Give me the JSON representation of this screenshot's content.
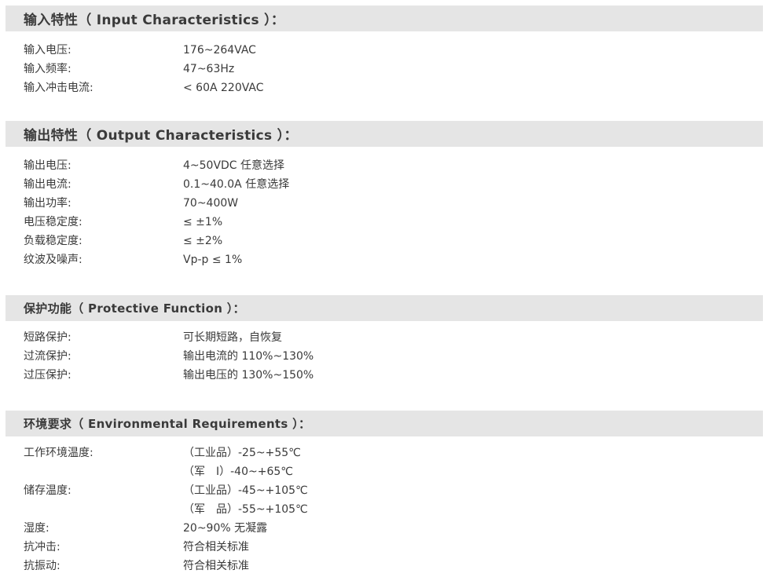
{
  "page": {
    "background": "#ffffff",
    "text_color": "#3a3a3a",
    "header_bar_color": "#e5e5e5"
  },
  "sections": [
    {
      "title": "输入特性（ Input Characteristics ）：",
      "rows": [
        {
          "label": "输入电压:",
          "value": "176~264VAC"
        },
        {
          "label": "输入频率:",
          "value": "47~63Hz"
        },
        {
          "label": "输入冲击电流:",
          "value": "< 60A 220VAC"
        }
      ]
    },
    {
      "title": "输出特性（ Output Characteristics ）：",
      "rows": [
        {
          "label": "输出电压:",
          "value": "4~50VDC 任意选择"
        },
        {
          "label": "输出电流:",
          "value": "0.1~40.0A 任意选择"
        },
        {
          "label": "输出功率:",
          "value": "70~400W"
        },
        {
          "label": "电压稳定度:",
          "value": "≤ ±1%"
        },
        {
          "label": "负载稳定度:",
          "value": "≤ ±2%"
        },
        {
          "label": "纹波及噪声:",
          "value": "Vp-p ≤ 1%"
        }
      ]
    },
    {
      "title": "保护功能（ Protective Function ）：",
      "rows": [
        {
          "label": "短路保护:",
          "value": "可长期短路，自恢复"
        },
        {
          "label": "过流保护:",
          "value": "输出电流的 110%~130%"
        },
        {
          "label": "过压保护:",
          "value": "输出电压的 130%~150%"
        }
      ]
    },
    {
      "title": "环境要求（ Environmental Requirements ）：",
      "rows": [
        {
          "label": "工作环境温度:",
          "value": "（工业品）-25~+55℃"
        },
        {
          "label": "",
          "value": "（军　Ⅰ）-40~+65℃"
        },
        {
          "label": "储存温度:",
          "value": "（工业品）-45~+105℃"
        },
        {
          "label": "",
          "value": "（军　品）-55~+105℃"
        },
        {
          "label": "湿度:",
          "value": "20~90% 无凝露"
        },
        {
          "label": "抗冲击:",
          "value": "符合相关标准"
        },
        {
          "label": "抗振动:",
          "value": "符合相关标准"
        }
      ]
    }
  ]
}
